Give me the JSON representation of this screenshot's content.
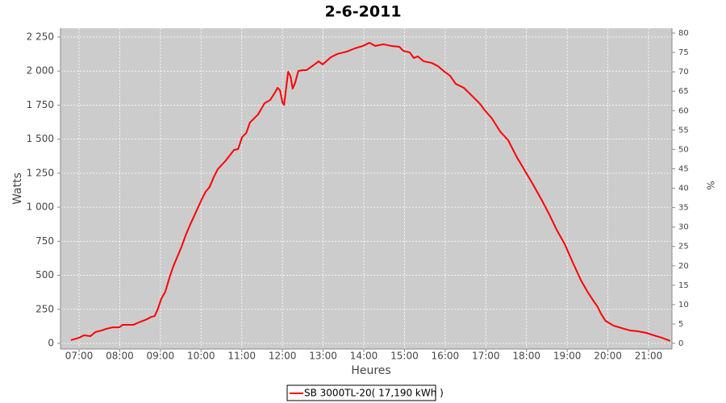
{
  "chart_data": {
    "type": "line",
    "title": "2-6-2011",
    "x_label": "Heures",
    "y_label": "Watts",
    "y2_label": "%",
    "x": [
      6.8,
      7.0,
      7.12,
      7.28,
      7.4,
      7.56,
      7.67,
      7.83,
      7.99,
      8.07,
      8.33,
      8.47,
      8.63,
      8.78,
      8.86,
      8.94,
      9.02,
      9.12,
      9.22,
      9.32,
      9.42,
      9.52,
      9.62,
      9.72,
      9.82,
      9.92,
      10.01,
      10.11,
      10.21,
      10.31,
      10.41,
      10.61,
      10.81,
      10.91,
      11.01,
      11.11,
      11.2,
      11.4,
      11.56,
      11.7,
      11.8,
      11.88,
      11.94,
      12.0,
      12.04,
      12.14,
      12.2,
      12.25,
      12.31,
      12.39,
      12.51,
      12.59,
      12.79,
      12.89,
      12.99,
      13.19,
      13.35,
      13.58,
      13.78,
      13.98,
      14.14,
      14.28,
      14.48,
      14.67,
      14.87,
      14.97,
      15.13,
      15.23,
      15.33,
      15.47,
      15.67,
      15.82,
      15.96,
      16.12,
      16.26,
      16.46,
      16.66,
      16.86,
      16.96,
      17.15,
      17.35,
      17.55,
      17.75,
      17.95,
      18.15,
      18.35,
      18.55,
      18.74,
      18.94,
      19.14,
      19.34,
      19.5,
      19.64,
      19.74,
      19.84,
      19.94,
      20.14,
      20.34,
      20.54,
      20.74,
      20.94,
      21.13,
      21.33,
      21.53
    ],
    "series": [
      {
        "name": "SB 3000TL-20( 17,190 kWh  )",
        "color": "#ff0000",
        "values": [
          24,
          41,
          59,
          53,
          83,
          95,
          107,
          118,
          118,
          136,
          136,
          154,
          172,
          195,
          201,
          255,
          326,
          379,
          480,
          568,
          639,
          710,
          793,
          864,
          930,
          995,
          1054,
          1113,
          1149,
          1220,
          1279,
          1344,
          1421,
          1427,
          1516,
          1545,
          1622,
          1681,
          1764,
          1788,
          1835,
          1877,
          1859,
          1770,
          1752,
          1995,
          1960,
          1871,
          1912,
          2001,
          2007,
          2007,
          2049,
          2072,
          2049,
          2102,
          2126,
          2143,
          2167,
          2185,
          2208,
          2185,
          2197,
          2185,
          2179,
          2149,
          2137,
          2096,
          2108,
          2072,
          2060,
          2037,
          2001,
          1966,
          1906,
          1877,
          1818,
          1758,
          1717,
          1652,
          1557,
          1492,
          1374,
          1273,
          1172,
          1066,
          953,
          835,
          728,
          592,
          462,
          379,
          314,
          272,
          213,
          166,
          130,
          112,
          95,
          89,
          77,
          59,
          41,
          18
        ]
      }
    ],
    "xlim": [
      6.544,
      21.575
    ],
    "xticks": [
      {
        "value": 7,
        "label": "07:00"
      },
      {
        "value": 8,
        "label": "08:00"
      },
      {
        "value": 9,
        "label": "09:00"
      },
      {
        "value": 10,
        "label": "10:00"
      },
      {
        "value": 11,
        "label": "11:00"
      },
      {
        "value": 12,
        "label": "12:00"
      },
      {
        "value": 13,
        "label": "13:00"
      },
      {
        "value": 14,
        "label": "14:00"
      },
      {
        "value": 15,
        "label": "15:00"
      },
      {
        "value": 16,
        "label": "16:00"
      },
      {
        "value": 17,
        "label": "17:00"
      },
      {
        "value": 18,
        "label": "18:00"
      },
      {
        "value": 19,
        "label": "19:00"
      },
      {
        "value": 20,
        "label": "20:00"
      },
      {
        "value": 21,
        "label": "21:00"
      }
    ],
    "ylim": [
      -41.4,
      2315
    ],
    "yticks": [
      0,
      250,
      500,
      750,
      {
        "value": 1000,
        "label": "1 000"
      },
      {
        "value": 1250,
        "label": "1 250"
      },
      {
        "value": 1500,
        "label": "1 500"
      },
      {
        "value": 1750,
        "label": "1 750"
      },
      {
        "value": 2000,
        "label": "2 000"
      },
      {
        "value": 2250,
        "label": "2 250"
      }
    ],
    "y2lim": [
      -1.45,
      81.25
    ],
    "y2ticks": [
      0,
      5,
      10,
      15,
      20,
      25,
      30,
      35,
      40,
      45,
      50,
      55,
      60,
      65,
      70,
      75,
      80
    ],
    "grid": true,
    "legend": "bottom"
  }
}
